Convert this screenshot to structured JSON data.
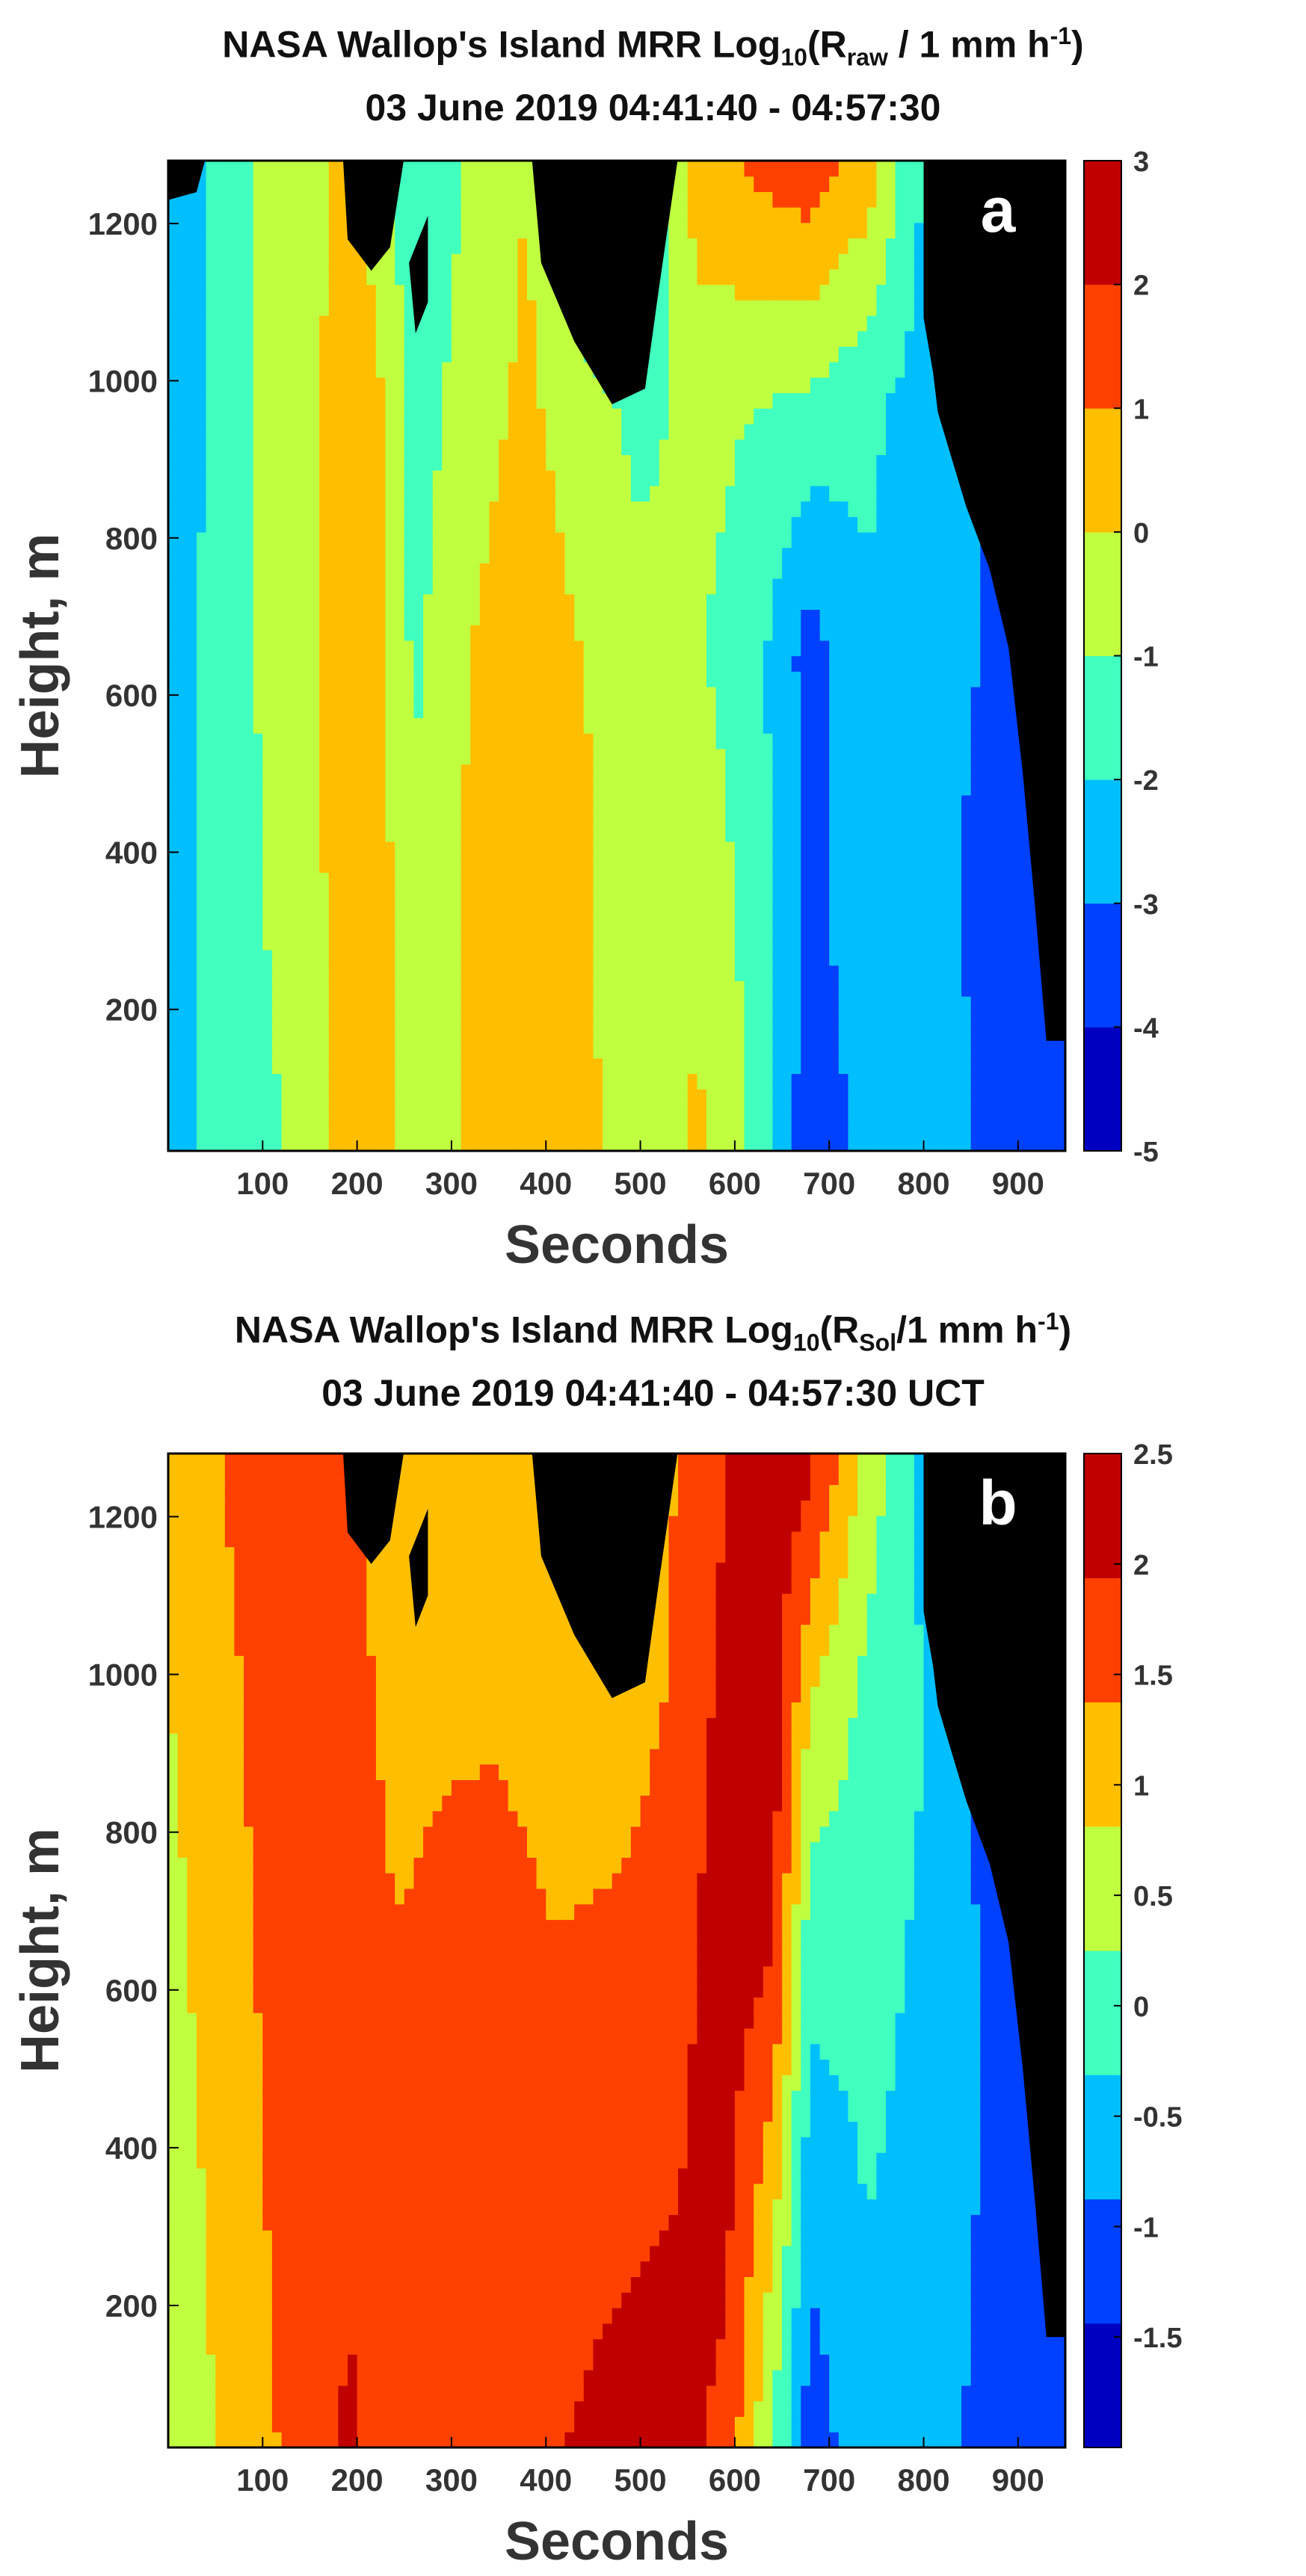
{
  "chart_data": [
    {
      "type": "contour",
      "panel_label": "a",
      "title": {
        "prefix": "NASA Wallop's Island MRR Log",
        "log_base": "10",
        "open": "(R",
        "subscript": "raw",
        "suffix": " / 1 mm h",
        "exponent": "-1",
        "close": ")"
      },
      "subtitle": "03 June 2019 04:41:40 - 04:57:30",
      "xlabel": "Seconds",
      "ylabel": "Height, m",
      "xlim": [
        0,
        950
      ],
      "ylim": [
        20,
        1280
      ],
      "xticks": [
        "100",
        "200",
        "300",
        "400",
        "500",
        "600",
        "700",
        "800",
        "900"
      ],
      "yticks": [
        "200",
        "400",
        "600",
        "800",
        "1000",
        "1200"
      ],
      "colorbar": {
        "range": [
          -5,
          3
        ],
        "ticks": [
          "3",
          "2",
          "1",
          "0",
          "-1",
          "-2",
          "-3",
          "-4",
          "-5"
        ]
      },
      "columns": [
        {
          "x": 0,
          "values": [
            -2.2,
            -2.4,
            -2.6,
            -2.8,
            -3.0
          ]
        },
        {
          "x": 60,
          "values": [
            -1.8,
            -1.6,
            -1.5,
            -1.5,
            -1.4
          ]
        },
        {
          "x": 130,
          "values": [
            -0.9,
            -0.6,
            -0.4,
            -0.3,
            -0.5
          ]
        },
        {
          "x": 190,
          "values": [
            0.3,
            0.4,
            0.5,
            0.3,
            0.2
          ]
        },
        {
          "x": 230,
          "values": [
            0.2,
            0.2,
            0.1,
            0.0,
            -0.3
          ]
        },
        {
          "x": 260,
          "values": [
            -0.5,
            -0.8,
            -1.2,
            -1.6,
            -2.1
          ]
        },
        {
          "x": 320,
          "values": [
            0.1,
            0.2,
            0.0,
            -0.4,
            -0.9
          ]
        },
        {
          "x": 380,
          "values": [
            0.3,
            0.4,
            0.6,
            0.2,
            0.0
          ]
        },
        {
          "x": 440,
          "values": [
            0.3,
            0.2,
            0.0,
            -0.6,
            -2.2
          ]
        },
        {
          "x": 500,
          "values": [
            -0.7,
            -0.9,
            -0.6,
            -1.3,
            -2.5
          ]
        },
        {
          "x": 560,
          "values": [
            0.2,
            -0.2,
            -0.9,
            -0.7,
            0.6
          ]
        },
        {
          "x": 620,
          "values": [
            -1.1,
            -1.4,
            -1.6,
            -1.0,
            1.2
          ]
        },
        {
          "x": 680,
          "values": [
            -3.8,
            -3.2,
            -3.5,
            -1.3,
            1.7
          ]
        },
        {
          "x": 740,
          "values": [
            -2.6,
            -2.5,
            -2.1,
            -1.8,
            0.6
          ]
        },
        {
          "x": 800,
          "values": [
            -2.2,
            -2.4,
            -2.6,
            -2.4,
            -2.1
          ]
        },
        {
          "x": 860,
          "values": [
            -3.1,
            -3.3,
            -3.0,
            -3.0,
            -3.5
          ]
        },
        {
          "x": 950,
          "values": [
            -3.1,
            -3.3,
            -3.4,
            -3.6,
            -3.6
          ]
        }
      ]
    },
    {
      "type": "contour",
      "panel_label": "b",
      "title": {
        "prefix": "NASA Wallop's Island MRR Log",
        "log_base": "10",
        "open": "(R",
        "subscript": "Sol",
        "suffix": "/1 mm h",
        "exponent": "-1",
        "close": ")"
      },
      "subtitle": "03 June  2019 04:41:40 - 04:57:30 UCT",
      "xlabel": "Seconds",
      "ylabel": "Height, m",
      "xlim": [
        0,
        950
      ],
      "ylim": [
        20,
        1280
      ],
      "xticks": [
        "100",
        "200",
        "300",
        "400",
        "500",
        "600",
        "700",
        "800",
        "900"
      ],
      "yticks": [
        "200",
        "400",
        "600",
        "800",
        "1000",
        "1200"
      ],
      "colorbar": {
        "range": [
          -2,
          2.5
        ],
        "ticks": [
          "2.5",
          "2",
          "1.5",
          "1",
          "0.5",
          "0",
          "-0.5",
          "-1",
          "-1.5"
        ]
      },
      "columns": [
        {
          "x": 0,
          "values": [
            0.4,
            0.5,
            0.6,
            0.8,
            1.0
          ]
        },
        {
          "x": 60,
          "values": [
            0.9,
            1.0,
            1.2,
            1.3,
            1.4
          ]
        },
        {
          "x": 130,
          "values": [
            1.5,
            1.6,
            1.6,
            1.6,
            1.5
          ]
        },
        {
          "x": 190,
          "values": [
            2.0,
            1.9,
            1.7,
            1.6,
            1.5
          ]
        },
        {
          "x": 240,
          "values": [
            1.8,
            1.6,
            1.4,
            1.2,
            1.0
          ]
        },
        {
          "x": 290,
          "values": [
            1.7,
            1.6,
            1.5,
            1.3,
            1.2
          ]
        },
        {
          "x": 350,
          "values": [
            1.8,
            1.7,
            1.6,
            1.3,
            1.1
          ]
        },
        {
          "x": 410,
          "values": [
            1.9,
            1.7,
            1.4,
            1.1,
            0.9
          ]
        },
        {
          "x": 470,
          "values": [
            2.1,
            1.8,
            1.5,
            1.0,
            1.0
          ]
        },
        {
          "x": 530,
          "values": [
            2.2,
            1.9,
            1.7,
            1.4,
            1.3
          ]
        },
        {
          "x": 590,
          "values": [
            1.8,
            2.1,
            2.2,
            2.1,
            1.9
          ]
        },
        {
          "x": 640,
          "values": [
            0.2,
            1.0,
            2.0,
            2.3,
            2.3
          ]
        },
        {
          "x": 680,
          "values": [
            -1.2,
            -0.7,
            -0.1,
            0.8,
            2.1
          ]
        },
        {
          "x": 740,
          "values": [
            -0.5,
            -0.3,
            -0.1,
            0.1,
            0.6
          ]
        },
        {
          "x": 800,
          "values": [
            -0.6,
            -0.5,
            -0.4,
            -0.3,
            -0.5
          ]
        },
        {
          "x": 860,
          "values": [
            -1.0,
            -0.9,
            -0.9,
            -1.0,
            -1.1
          ]
        },
        {
          "x": 950,
          "values": [
            -1.2,
            -1.1,
            -1.1,
            -1.2,
            -1.2
          ]
        }
      ]
    }
  ]
}
